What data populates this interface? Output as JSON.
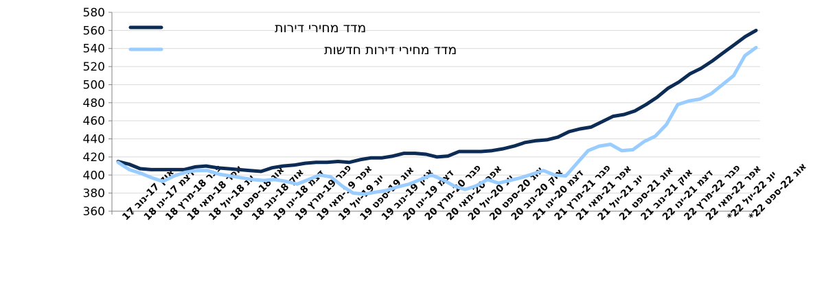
{
  "chart_data": {
    "type": "line",
    "ylim": [
      360,
      580
    ],
    "y_ticks": [
      360,
      380,
      400,
      420,
      440,
      460,
      480,
      500,
      520,
      540,
      560,
      580
    ],
    "grid": "horizontal",
    "legend_position": "top-left",
    "colors": {
      "all_dwellings": "#0d2c55",
      "new_dwellings": "#99ccff",
      "grid": "#d9d9d9",
      "axis": "#808080"
    },
    "x_labels": [
      "אוק 17-נוב 17",
      "דצמ 17-ינו 18",
      "פבר 18-מרץ 18",
      "אפר 18-מאי 18",
      "יונ 18-יול 18",
      "אוג 18-ספט 18",
      "אוק 18-נוב 18",
      "דצמ 18-ינו 19",
      "פבר 19-מרץ 19",
      "אפר 19-מאי 19",
      "יונ 19-יול 19",
      "אוג 19-ספט 19",
      "אוק 19-נוב 19",
      "דצמ 19-ינו 20",
      "פבר 20-מרץ 20",
      "אפר 20-מאי 20",
      "יונ 20-יול 20",
      "אוג 20-ספט 20",
      "אוק 20-נוב 20",
      "דצמ 20-ינו 21",
      "פבר 21-מרץ 21",
      "אפר 21-מאי 21",
      "יונ 21-יול 21",
      "אוג 21-ספט 21",
      "אוק 21-נוב 21",
      "דצמ 21-ינו 22",
      "פבר 22-מרץ 22",
      "אפר 22-מאי 22",
      "יונ 22-יול 22*",
      "אוג 22-ספט 22*"
    ],
    "series": [
      {
        "name": "מדד מחירי דירות",
        "color_key": "all_dwellings",
        "values": [
          415,
          412,
          407,
          406,
          406,
          406,
          406,
          409,
          410,
          408,
          407,
          406,
          405,
          404,
          408,
          410,
          411,
          413,
          414,
          414,
          415,
          414,
          417,
          419,
          419,
          421,
          424,
          424,
          423,
          420,
          421,
          426,
          426,
          426,
          427,
          429,
          432,
          436,
          438,
          439,
          442,
          448,
          451,
          453,
          459,
          465,
          467,
          471,
          478,
          486,
          496,
          503,
          512,
          518,
          526,
          535,
          544,
          553,
          560
        ]
      },
      {
        "name": "מדד מחירי דירות חדשות",
        "color_key": "new_dwellings",
        "values": [
          414,
          406,
          402,
          397,
          393,
          399,
          403,
          405,
          405,
          401,
          399,
          397,
          395,
          394,
          395,
          393,
          390,
          395,
          400,
          398,
          388,
          380,
          379,
          381,
          383,
          387,
          390,
          395,
          400,
          395,
          388,
          384,
          388,
          395,
          391,
          394,
          397,
          401,
          405,
          400,
          399,
          413,
          427,
          432,
          434,
          427,
          428,
          437,
          443,
          456,
          478,
          482,
          484,
          490,
          500,
          510,
          532,
          541
        ]
      }
    ]
  }
}
